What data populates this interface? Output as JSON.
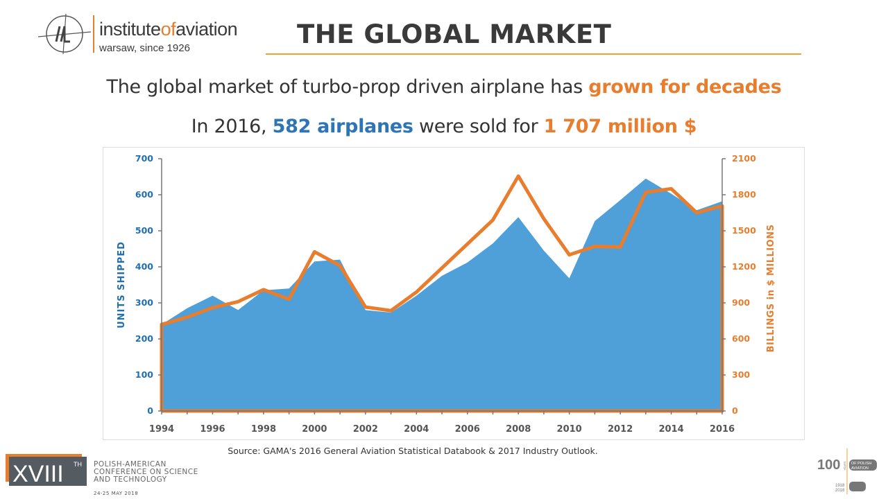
{
  "header": {
    "logo_name_prefix": "institute",
    "logo_name_of": "of",
    "logo_name_suffix": "aviation",
    "logo_subtitle": "warsaw, since 1926",
    "logo_monogram": "ILot",
    "title": "THE GLOBAL MARKET"
  },
  "headline": {
    "line1_prefix": "The global market of turbo-prop driven airplane has ",
    "line1_highlight": "grown for decades",
    "line2_prefix": "In 2016, ",
    "line2_units": "582 airplanes",
    "line2_mid": " were sold for ",
    "line2_value": "1 707 million $"
  },
  "colors": {
    "units": "#4f9fd8",
    "billings": "#e87d2e",
    "left_axis": "#1f6fb2",
    "right_axis": "#e87d2e"
  },
  "chart_data": {
    "type": "area+line",
    "x": [
      1994,
      1995,
      1996,
      1997,
      1998,
      1999,
      2000,
      2001,
      2002,
      2003,
      2004,
      2005,
      2006,
      2007,
      2008,
      2009,
      2010,
      2011,
      2012,
      2013,
      2014,
      2015,
      2016
    ],
    "series": [
      {
        "name": "UNITS SHIPPED",
        "type": "area",
        "axis": "left",
        "values": [
          240,
          285,
          320,
          280,
          335,
          340,
          415,
          420,
          280,
          273,
          320,
          375,
          412,
          465,
          538,
          445,
          368,
          527,
          585,
          645,
          603,
          557,
          582
        ]
      },
      {
        "name": "BILLINGS in $ MILLIONS",
        "type": "line",
        "axis": "right",
        "values": [
          720,
          780,
          860,
          910,
          1010,
          930,
          1325,
          1210,
          865,
          835,
          990,
          1190,
          1390,
          1590,
          1955,
          1600,
          1300,
          1370,
          1365,
          1820,
          1850,
          1650,
          1707
        ]
      }
    ],
    "ylabel": "UNITS SHIPPED",
    "y2label": "BILLINGS  in $ MILLIONS",
    "ylim": [
      0,
      700
    ],
    "y2lim": [
      0,
      2100
    ],
    "yticks": [
      "0",
      "100",
      "200",
      "300",
      "400",
      "500",
      "600",
      "700"
    ],
    "y2ticks": [
      "0",
      "300",
      "600",
      "900",
      "1200",
      "1500",
      "1800",
      "2100"
    ],
    "xticks": [
      "1994",
      "1996",
      "1998",
      "2000",
      "2002",
      "2004",
      "2006",
      "2008",
      "2010",
      "2012",
      "2014",
      "2016"
    ],
    "grid": false,
    "legend": "none"
  },
  "source": "Source: GAMA's 2016 General Aviation Statistical Databook & 2017 Industry Outlook.",
  "footer": {
    "conf_numeral": "XVIII",
    "conf_suffix": "TH",
    "conf_line1": "POLISH-AMERICAN",
    "conf_line2": "CONFERENCE ON SCIENCE",
    "conf_line3": "AND TECHNOLOGY",
    "conf_date": "24-25 MAY 2018",
    "centenary_number": "100",
    "centenary_years_word": "YEARS",
    "centenary_line1": "OF POLISH",
    "centenary_line2": "AVIATION",
    "centenary_year1": "1918",
    "centenary_year2": "2018"
  }
}
